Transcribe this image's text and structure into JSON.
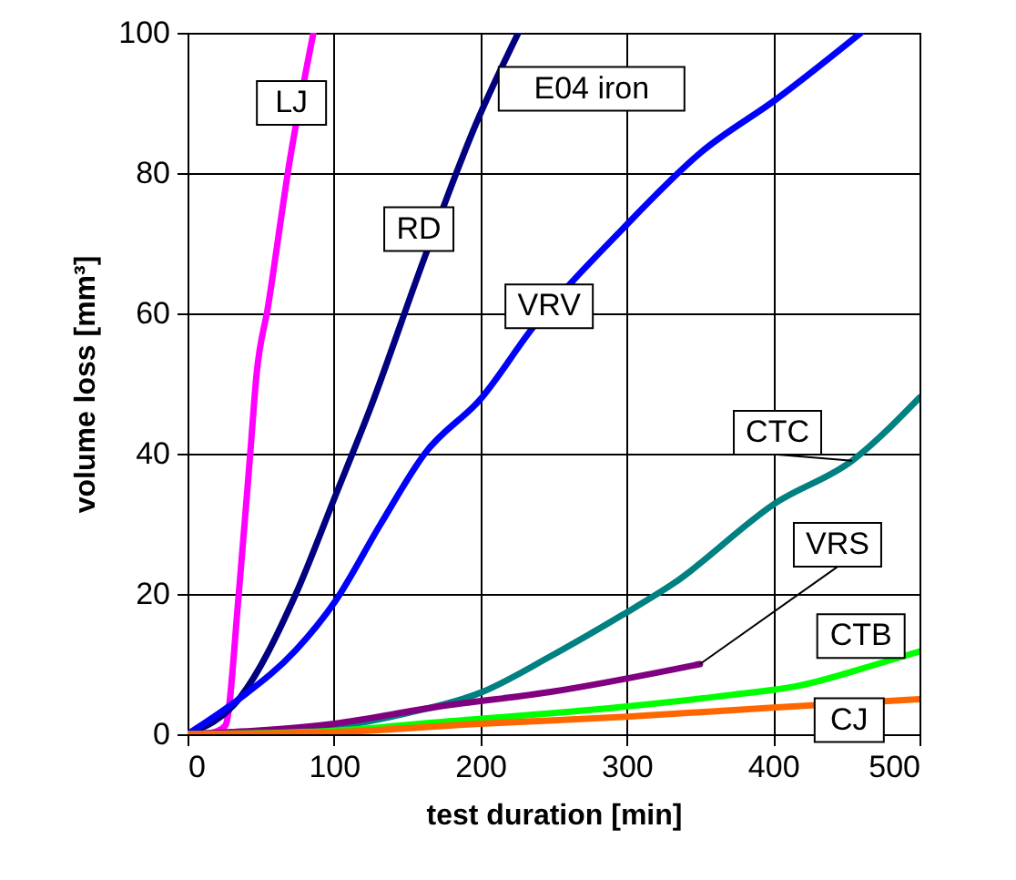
{
  "chart_data": {
    "type": "line",
    "title": "E04 iron",
    "xlabel": "test duration [min]",
    "ylabel": "volume loss [mm³]",
    "xlim": [
      0,
      500
    ],
    "xticks": [
      0,
      100,
      200,
      300,
      400,
      500
    ],
    "ylim": [
      0,
      100
    ],
    "yticks": [
      0,
      20,
      40,
      60,
      80,
      100
    ],
    "grid": true,
    "marker": "none",
    "line_style": "solid",
    "series": [
      {
        "name": "LJ",
        "color": "#ff00ff",
        "x": [
          8.5,
          20,
          26,
          35,
          43,
          47,
          55,
          70,
          86
        ],
        "values": [
          0,
          0.4,
          1.3,
          20,
          40.5,
          51,
          61,
          82,
          100
        ]
      },
      {
        "name": "RD",
        "color": "#000080",
        "x": [
          0,
          35,
          74,
          101,
          124,
          162,
          197,
          226
        ],
        "values": [
          0,
          5,
          20,
          34,
          46,
          68,
          87,
          100
        ]
      },
      {
        "name": "VRV",
        "color": "#0000ff",
        "x": [
          0,
          35,
          74,
          101,
          132,
          162,
          201,
          236,
          297,
          351,
          402,
          460
        ],
        "values": [
          0,
          5,
          12,
          19,
          30,
          40,
          48,
          58,
          72,
          83,
          90.5,
          100
        ]
      },
      {
        "name": "CTC",
        "color": "#008080",
        "x": [
          0,
          50,
          100,
          150,
          201,
          247,
          297,
          332,
          402,
          454,
          500
        ],
        "values": [
          0,
          0,
          1,
          3,
          6,
          11,
          17,
          21.5,
          33,
          39,
          48
        ]
      },
      {
        "name": "VRS",
        "color": "#800080",
        "x": [
          0,
          100,
          170,
          247,
          350
        ],
        "values": [
          0,
          1.5,
          3.9,
          6,
          10
        ]
      },
      {
        "name": "CTB",
        "color": "#00ff00",
        "x": [
          0,
          100,
          170,
          297,
          371,
          417,
          471,
          500
        ],
        "values": [
          0,
          0.5,
          1.7,
          3.9,
          5.6,
          6.9,
          10,
          11.8
        ]
      },
      {
        "name": "CJ",
        "color": "#ff6600",
        "x": [
          0,
          100,
          200,
          300,
          400,
          500
        ],
        "values": [
          0,
          0.3,
          1.5,
          2.5,
          3.8,
          5
        ]
      }
    ]
  }
}
